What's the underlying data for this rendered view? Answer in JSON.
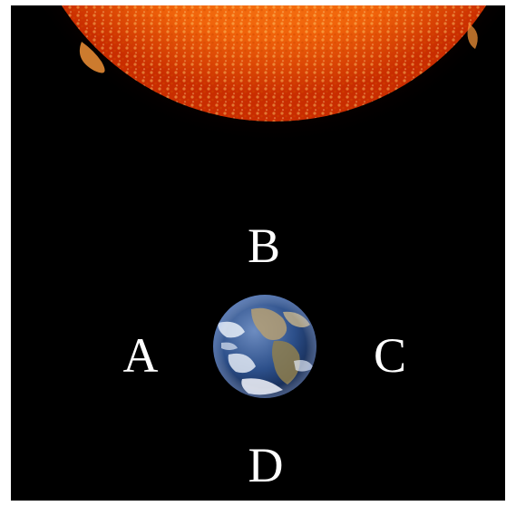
{
  "labels": {
    "a": "A",
    "b": "B",
    "c": "C",
    "d": "D"
  },
  "colors": {
    "background": "#000000",
    "sun_core": "#ff8a1c",
    "sun_edge": "#c92d00",
    "earth_ocean": "#2c4f8a",
    "label": "#ffffff"
  },
  "icons": {
    "sun": "sun-image",
    "earth": "earth-image"
  }
}
